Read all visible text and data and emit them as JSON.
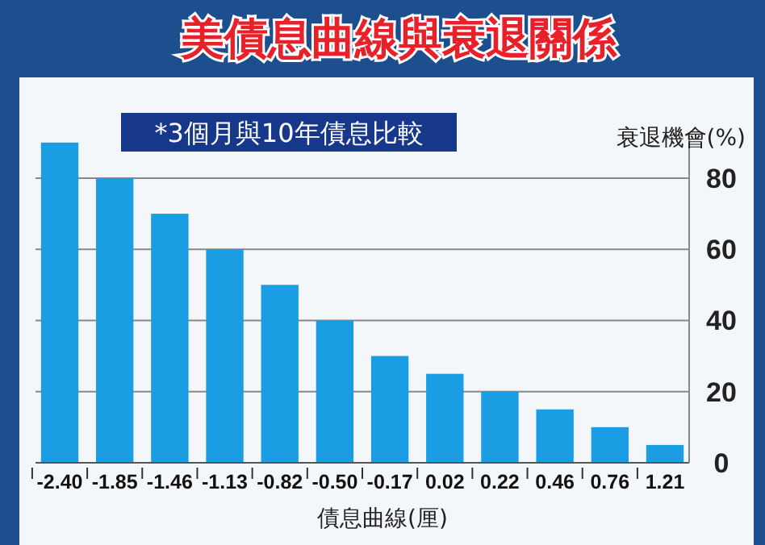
{
  "chart_data": {
    "type": "bar",
    "title": "美債息曲線與衰退關係",
    "subtitle": "*3個月與10年債息比較",
    "xlabel": "債息曲線(厘)",
    "ylabel": "衰退機會(%)",
    "categories": [
      "-2.40",
      "-1.85",
      "-1.46",
      "-1.13",
      "-0.82",
      "-0.50",
      "-0.17",
      "0.02",
      "0.22",
      "0.46",
      "0.76",
      "1.21"
    ],
    "values": [
      90,
      80,
      70,
      60,
      50,
      40,
      30,
      25,
      20,
      15,
      10,
      5
    ],
    "color": "#1a9de3",
    "ylim": [
      0,
      92
    ],
    "yticks": [
      0,
      20,
      40,
      60,
      80
    ],
    "grid": "y"
  }
}
